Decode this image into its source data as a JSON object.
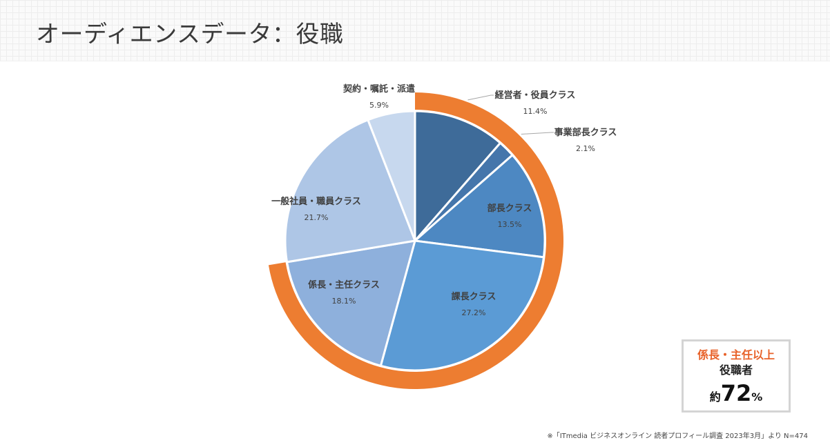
{
  "header": {
    "title": "オーディエンスデータ：役職"
  },
  "chart_data": {
    "type": "pie",
    "start": "12 o'clock",
    "direction": "clockwise",
    "slices": [
      {
        "label": "経営者・役員クラス",
        "value": 11.4,
        "value_label": "11.4%",
        "color": "#3e6b99"
      },
      {
        "label": "事業部長クラス",
        "value": 2.1,
        "value_label": "2.1%",
        "color": "#4576ab"
      },
      {
        "label": "部長クラス",
        "value": 13.5,
        "value_label": "13.5%",
        "color": "#4d88c2"
      },
      {
        "label": "課長クラス",
        "value": 27.2,
        "value_label": "27.2%",
        "color": "#5b9bd5"
      },
      {
        "label": "係長・主任クラス",
        "value": 18.1,
        "value_label": "18.1%",
        "color": "#8eb0dc"
      },
      {
        "label": "一般社員・職員クラス",
        "value": 21.7,
        "value_label": "21.7%",
        "color": "#aec6e6"
      },
      {
        "label": "契約・嘱託・派遣",
        "value": 5.9,
        "value_label": "5.9%",
        "color": "#c7d8ee"
      }
    ],
    "highlight_ring": {
      "covers": [
        "経営者・役員クラス",
        "事業部長クラス",
        "部長クラス",
        "課長クラス",
        "係長・主任クラス"
      ],
      "color": "#ed7d31"
    }
  },
  "callout": {
    "line1": "係長・主任以上",
    "line2": "役職者",
    "prefix": "約",
    "value": "72",
    "suffix": "%"
  },
  "source": {
    "note": "※「ITmedia ビジネスオンライン 読者プロフィール調査 2023年3月」より N=474"
  }
}
